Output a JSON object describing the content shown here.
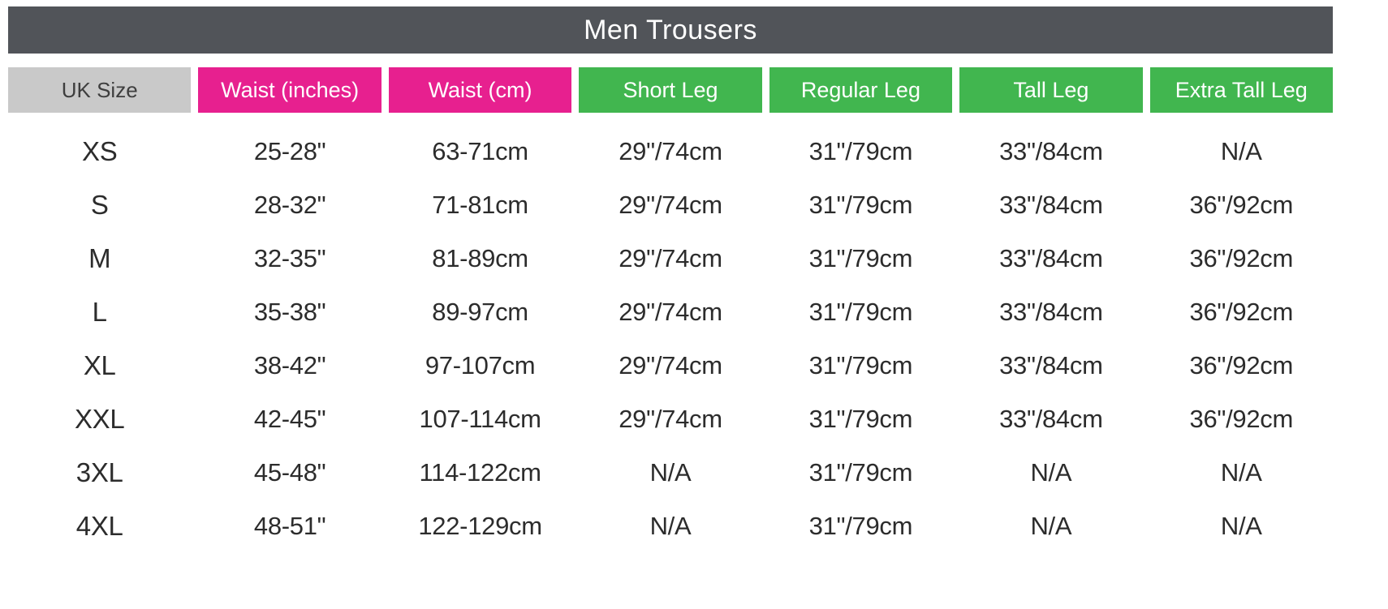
{
  "title": "Men Trousers",
  "colors": {
    "title_bar_bg": "#515459",
    "title_text": "#ffffff",
    "size_header_bg": "#c9c9c9",
    "size_header_text": "#3e3e3e",
    "waist_header_bg": "#e7208f",
    "leg_header_bg": "#41b64f",
    "header_text": "#ffffff",
    "body_text": "#2c2c2c",
    "background": "#ffffff"
  },
  "chart_data": {
    "type": "table",
    "title": "Men Trousers",
    "columns": [
      "UK Size",
      "Waist (inches)",
      "Waist (cm)",
      "Short Leg",
      "Regular Leg",
      "Tall Leg",
      "Extra Tall Leg"
    ],
    "rows": [
      [
        "XS",
        "25-28\"",
        "63-71cm",
        "29\"/74cm",
        "31\"/79cm",
        "33\"/84cm",
        "N/A"
      ],
      [
        "S",
        "28-32\"",
        "71-81cm",
        "29\"/74cm",
        "31\"/79cm",
        "33\"/84cm",
        "36\"/92cm"
      ],
      [
        "M",
        "32-35\"",
        "81-89cm",
        "29\"/74cm",
        "31\"/79cm",
        "33\"/84cm",
        "36\"/92cm"
      ],
      [
        "L",
        "35-38\"",
        "89-97cm",
        "29\"/74cm",
        "31\"/79cm",
        "33\"/84cm",
        "36\"/92cm"
      ],
      [
        "XL",
        "38-42\"",
        "97-107cm",
        "29\"/74cm",
        "31\"/79cm",
        "33\"/84cm",
        "36\"/92cm"
      ],
      [
        "XXL",
        "42-45\"",
        "107-114cm",
        "29\"/74cm",
        "31\"/79cm",
        "33\"/84cm",
        "36\"/92cm"
      ],
      [
        "3XL",
        "45-48\"",
        "114-122cm",
        "N/A",
        "31\"/79cm",
        "N/A",
        "N/A"
      ],
      [
        "4XL",
        "48-51\"",
        "122-129cm",
        "N/A",
        "31\"/79cm",
        "N/A",
        "N/A"
      ]
    ]
  }
}
